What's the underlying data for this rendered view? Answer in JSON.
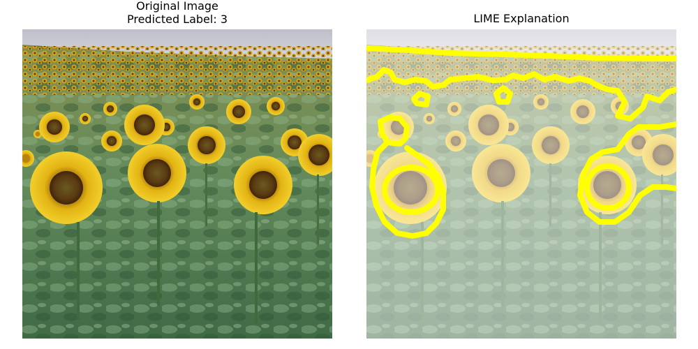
{
  "figure": {
    "left_title_line1": "Original Image",
    "left_title_line2": "Predicted Label: 3",
    "right_title": "LIME Explanation"
  },
  "images": {
    "left": "photograph of a sunflower field under a pale sky",
    "right": "same photograph, faded, with yellow superpixel boundaries"
  },
  "colors": {
    "sky": "#c9c9d3",
    "foliage": "#5f8a5a",
    "petal": "#e8b816",
    "center": "#5a3a12",
    "boundary": "#ffff00",
    "fade": "#ffffff"
  }
}
